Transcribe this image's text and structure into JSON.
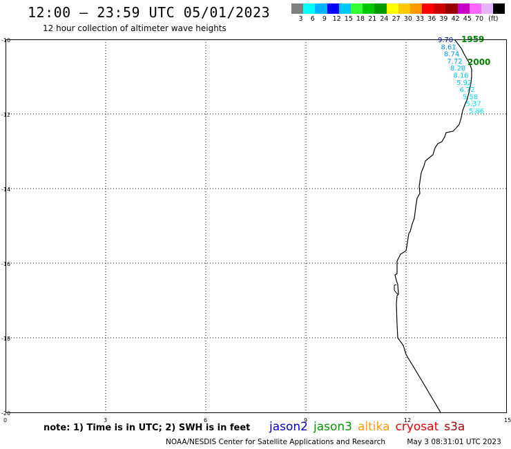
{
  "title": "12:00 – 23:59 UTC 05/01/2023",
  "subtitle": "12 hour collection of altimeter wave heights",
  "color_scale": {
    "colors": [
      "#808080",
      "#00ffff",
      "#00b4ff",
      "#0000ff",
      "#00c8ff",
      "#33ff33",
      "#00c800",
      "#009900",
      "#ffff00",
      "#ffc800",
      "#ff9900",
      "#ff0000",
      "#c80000",
      "#990000",
      "#c800c8",
      "#ff66ff",
      "#e6b4ff",
      "#000000"
    ],
    "labels": [
      "3",
      "6",
      "9",
      "12",
      "15",
      "18",
      "21",
      "24",
      "27",
      "30",
      "33",
      "36",
      "39",
      "42",
      "45",
      "70",
      "(ft)"
    ],
    "unit": "(ft)"
  },
  "axes": {
    "y_ticks": [
      "-10",
      "-12",
      "-14",
      "-16",
      "-18",
      "-20"
    ],
    "x_ticks": [
      "0",
      "3",
      "6",
      "9",
      "12",
      "15"
    ]
  },
  "track": {
    "pass_times": [
      "1959",
      "2000"
    ],
    "time_color": "#008000",
    "wave_values": [
      "9.70",
      "8.61",
      "8.74",
      "7.72",
      "8.28",
      "8.16",
      "5.92",
      "6.72",
      "5.58",
      "5.37",
      "5.86"
    ],
    "wave_colors": [
      "#0000cc",
      "#0088dd",
      "#0099ee",
      "#00aaee",
      "#00b8ee",
      "#00c8ee",
      "#00ccee",
      "#00d4ee",
      "#00dcee",
      "#00e4ee",
      "#00ecee"
    ]
  },
  "footer": {
    "note": "note: 1) Time is in UTC; 2) SWH is in feet",
    "satellites": [
      {
        "name": "jason2",
        "color": "#0000cc"
      },
      {
        "name": "jason3",
        "color": "#009900"
      },
      {
        "name": "altika",
        "color": "#ff9900"
      },
      {
        "name": "cryosat",
        "color": "#ee0000"
      },
      {
        "name": "s3a",
        "color": "#aa0000"
      }
    ],
    "credit": "NOAA/NESDIS Center for Satellite Applications and Research",
    "timestamp": "May  3 08:31:01 UTC 2023"
  }
}
